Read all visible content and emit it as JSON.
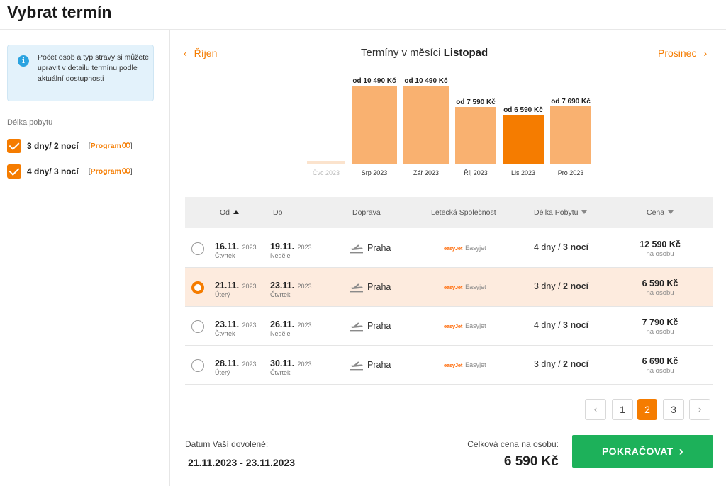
{
  "header": {
    "title": "Vybrat termín"
  },
  "sidebar": {
    "info_icon": "info-icon",
    "info_text": "Počet osob a typ stravy si můžete upravit v detailu termínu podle aktuální dostupnosti",
    "duration_heading": "Délka pobytu",
    "options": [
      {
        "label": "3 dny/ 2 nocí",
        "checked": true,
        "link": "Program"
      },
      {
        "label": "4 dny/ 3 nocí",
        "checked": true,
        "link": "Program"
      }
    ]
  },
  "month_nav": {
    "prev": "Říjen",
    "next": "Prosinec",
    "title_prefix": "Termíny v měsíci",
    "title_month": "Listopad"
  },
  "chart_data": {
    "type": "bar",
    "categories": [
      "Čvc 2023",
      "Srp 2023",
      "Zář 2023",
      "Říj 2023",
      "Lis 2023",
      "Pro 2023"
    ],
    "values": [
      0,
      10490,
      10490,
      7590,
      6590,
      7690
    ],
    "labels": [
      "",
      "od 10 490 Kč",
      "od 10 490 Kč",
      "od 7 590 Kč",
      "od 6 590 Kč",
      "od 7 690 Kč"
    ],
    "selected_index": 4,
    "colors": {
      "bar": "#f9b170",
      "selected": "#f57c00",
      "empty": "#fbe3cd"
    }
  },
  "table": {
    "headers": {
      "from": "Od",
      "to": "Do",
      "transport": "Doprava",
      "airline": "Letecká Společnost",
      "length": "Délka Pobytu",
      "price": "Cena"
    },
    "rows": [
      {
        "from": "16.11.",
        "from_year": "2023",
        "from_day": "Čtvrtek",
        "to": "19.11.",
        "to_year": "2023",
        "to_day": "Neděle",
        "transport": "Praha",
        "airline_logo": "easyJet",
        "airline": "Easyjet",
        "length_days": "4 dny",
        "length_nights": "3 nocí",
        "price": "12 590 Kč",
        "price_note": "na osobu",
        "selected": false
      },
      {
        "from": "21.11.",
        "from_year": "2023",
        "from_day": "Úterý",
        "to": "23.11.",
        "to_year": "2023",
        "to_day": "Čtvrtek",
        "transport": "Praha",
        "airline_logo": "easyJet",
        "airline": "Easyjet",
        "length_days": "3 dny",
        "length_nights": "2 nocí",
        "price": "6 590 Kč",
        "price_note": "na osobu",
        "selected": true
      },
      {
        "from": "23.11.",
        "from_year": "2023",
        "from_day": "Čtvrtek",
        "to": "26.11.",
        "to_year": "2023",
        "to_day": "Neděle",
        "transport": "Praha",
        "airline_logo": "easyJet",
        "airline": "Easyjet",
        "length_days": "4 dny",
        "length_nights": "3 nocí",
        "price": "7 790 Kč",
        "price_note": "na osobu",
        "selected": false
      },
      {
        "from": "28.11.",
        "from_year": "2023",
        "from_day": "Úterý",
        "to": "30.11.",
        "to_year": "2023",
        "to_day": "Čtvrtek",
        "transport": "Praha",
        "airline_logo": "easyJet",
        "airline": "Easyjet",
        "length_days": "3 dny",
        "length_nights": "2 nocí",
        "price": "6 690 Kč",
        "price_note": "na osobu",
        "selected": false
      }
    ]
  },
  "pagination": {
    "pages": [
      "1",
      "2",
      "3"
    ],
    "current": "2"
  },
  "footer": {
    "dates_label": "Datum Vaší dovolené:",
    "dates": "21.11.2023 - 23.11.2023",
    "total_label": "Celková cena na osobu:",
    "total_price": "6 590 Kč",
    "continue": "POKRAČOVAT"
  },
  "colors": {
    "accent": "#f57c00",
    "continue": "#1db15a",
    "selected_row": "#fdebde"
  }
}
